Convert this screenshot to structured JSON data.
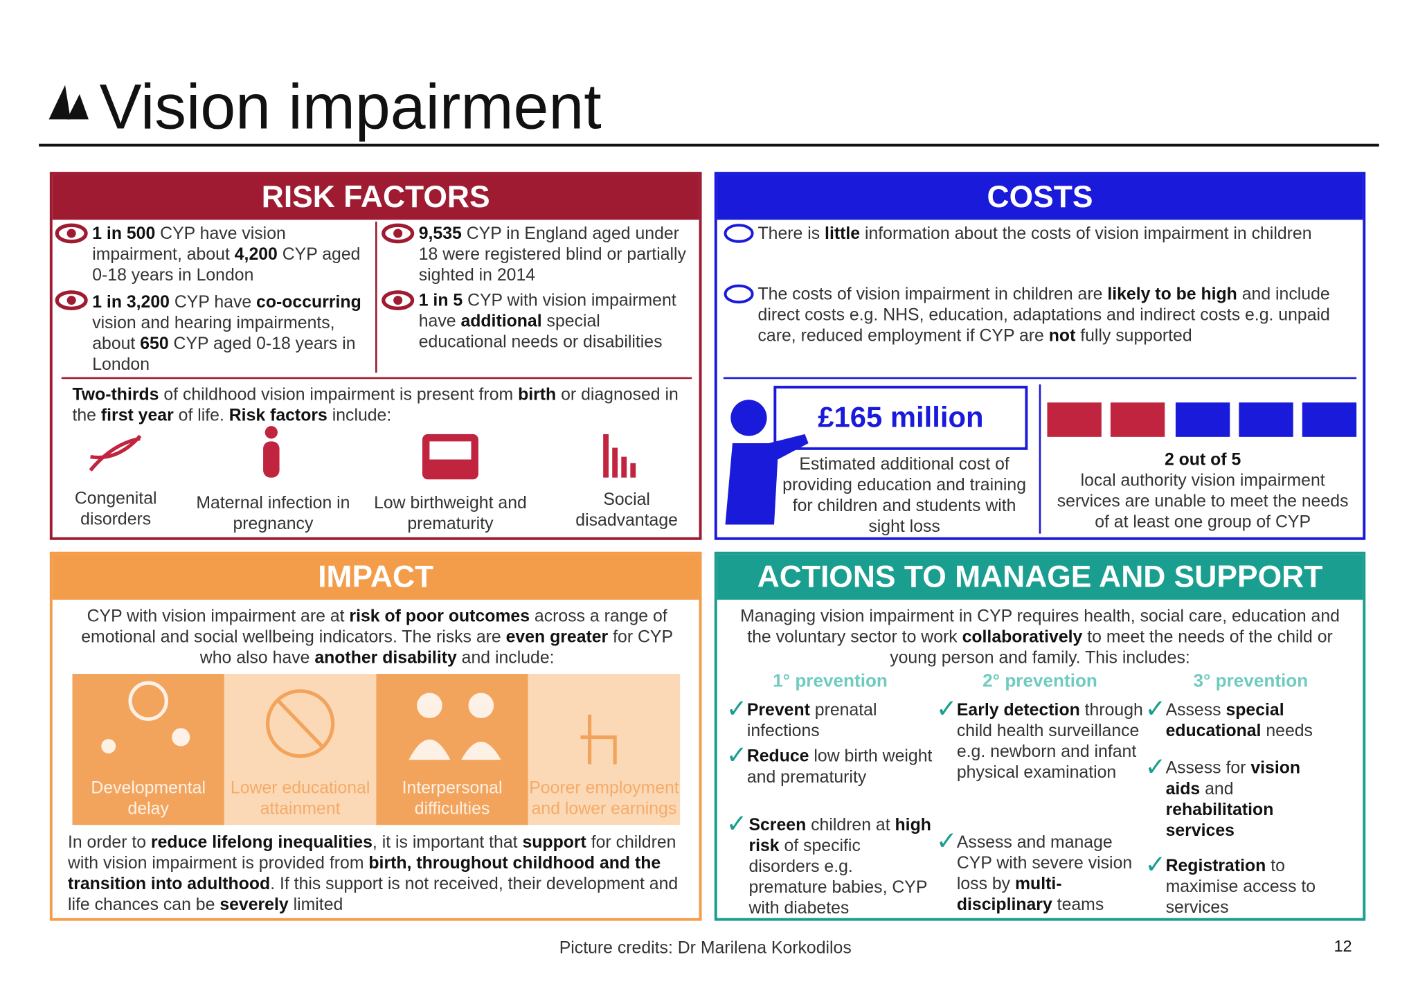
{
  "header": {
    "title": "Vision impairment"
  },
  "risk_factors": {
    "title": "RISK FACTORS",
    "facts": [
      [
        "1 in 500",
        " CYP have vision impairment, about ",
        "4,200",
        " CYP aged 0-18 years in London"
      ],
      [
        "9,535",
        " CYP in England aged under 18 were registered blind or partially sighted in 2014"
      ],
      [
        "1 in 3,200",
        " CYP have ",
        "co-occurring",
        " vision and hearing impairments, about ",
        "650",
        " CYP aged 0-18 years  in London"
      ],
      [
        "1 in 5",
        " CYP with vision impairment have ",
        "additional",
        " special educational needs or disabilities"
      ]
    ],
    "intro": [
      "Two-thirds",
      " of childhood vision impairment is present from ",
      "birth",
      " or diagnosed in the ",
      "first year",
      " of life. ",
      "Risk factors",
      " include:"
    ],
    "items": [
      "Congenital disorders",
      "Maternal infection in pregnancy",
      "Low birthweight and prematurity",
      "Social disadvantage"
    ]
  },
  "costs": {
    "title": "COSTS",
    "facts": [
      [
        "There is ",
        "little",
        " information about the costs of vision impairment in children"
      ],
      [
        "The costs of vision impairment in children are ",
        "likely to be high",
        " and include direct costs e.g. NHS, education, adaptations and indirect costs e.g. unpaid care, reduced employment if CYP are ",
        "not",
        " fully supported"
      ]
    ],
    "figure": "£165 million",
    "figure_caption": "Estimated additional cost of providing education and training for children and students with sight loss",
    "stat": "2 out of 5",
    "stat_caption": "local authority vision impairment services are unable to meet the needs of at least one group of CYP"
  },
  "impact": {
    "title": "IMPACT",
    "intro": [
      "CYP with vision impairment are at ",
      "risk of poor outcomes",
      " across a range of emotional and social wellbeing indicators. The risks are ",
      "even greater",
      " for CYP who also have ",
      "another disability",
      " and include:"
    ],
    "items": [
      "Developmental delay",
      "Lower educational attainment",
      "Interpersonal difficulties",
      "Poorer employment and lower earnings"
    ],
    "outro": [
      "In order to ",
      "reduce lifelong inequalities",
      ", it is important that ",
      "support",
      " for children with vision impairment is provided from ",
      "birth, throughout childhood and the transition into adulthood",
      ". If this support is not received, their development and life chances can be ",
      "severely",
      " limited"
    ]
  },
  "actions": {
    "title": "ACTIONS TO MANAGE AND SUPPORT",
    "intro": [
      "Managing vision impairment in CYP requires health, social care, education and the voluntary sector to work ",
      "collaboratively",
      " to meet the needs of the child or young person and family. This includes:"
    ],
    "columns": [
      {
        "heading": "1° prevention",
        "items": [
          [
            "Prevent",
            " prenatal infections"
          ],
          [
            "Reduce",
            " low birth weight and prematurity"
          ],
          [
            "Screen",
            " children at ",
            "high risk",
            " of specific disorders e.g. premature babies, CYP with diabetes"
          ]
        ]
      },
      {
        "heading": "2° prevention",
        "items": [
          [
            "Early detection",
            " through child health surveillance e.g. newborn and infant physical examination"
          ],
          [
            "Assess and manage CYP with severe vision loss by ",
            "multi-disciplinary",
            " teams"
          ]
        ]
      },
      {
        "heading": "3° prevention",
        "items": [
          [
            "Assess ",
            "special educational",
            " needs"
          ],
          [
            "Assess for ",
            "vision aids",
            " and ",
            "rehabilitation services"
          ],
          [
            "Registration",
            " to maximise access to services"
          ]
        ]
      }
    ]
  },
  "footer": {
    "credits": "Picture credits: Dr Marilena Korkodilos",
    "page_number": "12"
  }
}
